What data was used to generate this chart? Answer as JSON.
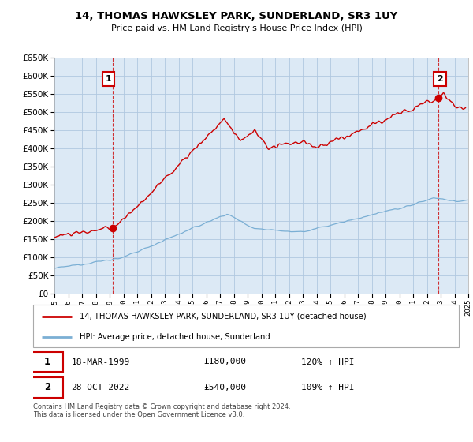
{
  "title": "14, THOMAS HAWKSLEY PARK, SUNDERLAND, SR3 1UY",
  "subtitle": "Price paid vs. HM Land Registry's House Price Index (HPI)",
  "line1_label": "14, THOMAS HAWKSLEY PARK, SUNDERLAND, SR3 1UY (detached house)",
  "line2_label": "HPI: Average price, detached house, Sunderland",
  "line1_color": "#cc0000",
  "line2_color": "#7bafd4",
  "marker1_x": 1999.21,
  "marker1_y": 180000,
  "marker2_x": 2022.83,
  "marker2_y": 540000,
  "footer": "Contains HM Land Registry data © Crown copyright and database right 2024.\nThis data is licensed under the Open Government Licence v3.0.",
  "ylim": [
    0,
    650000
  ],
  "xlim": [
    1995,
    2025
  ],
  "yticks": [
    0,
    50000,
    100000,
    150000,
    200000,
    250000,
    300000,
    350000,
    400000,
    450000,
    500000,
    550000,
    600000,
    650000
  ],
  "xticks": [
    1995,
    1996,
    1997,
    1998,
    1999,
    2000,
    2001,
    2002,
    2003,
    2004,
    2005,
    2006,
    2007,
    2008,
    2009,
    2010,
    2011,
    2012,
    2013,
    2014,
    2015,
    2016,
    2017,
    2018,
    2019,
    2020,
    2021,
    2022,
    2023,
    2024,
    2025
  ],
  "plot_bg_color": "#dce9f5",
  "fig_bg_color": "#ffffff",
  "grid_color": "#b0c8e0"
}
